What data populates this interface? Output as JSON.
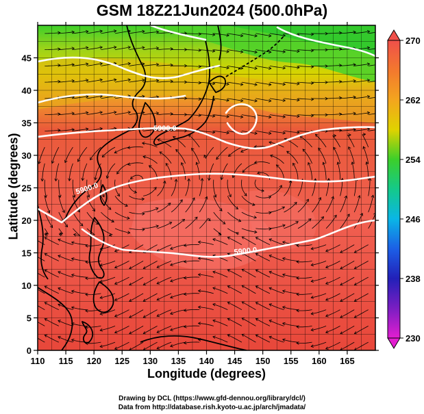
{
  "title": "GSM 18Z21Jun2024 (500.0hPa)",
  "map": {
    "xlabel": "Longitude (degrees)",
    "ylabel": "Latitude  (degrees)",
    "lon_range": [
      110,
      170
    ],
    "lat_range": [
      0,
      50
    ],
    "lon_ticks": [
      "110",
      "115",
      "120",
      "125",
      "130",
      "135",
      "140",
      "145",
      "150",
      "155",
      "160",
      "165"
    ],
    "lat_ticks": [
      "0",
      "5",
      "10",
      "15",
      "20",
      "25",
      "30",
      "35",
      "40",
      "45"
    ],
    "contour_label": "5900.0",
    "contour_value": 5900.0,
    "colorbar": {
      "min": 230,
      "max": 270,
      "labels": [
        "270",
        "262",
        "254",
        "246",
        "238",
        "230"
      ]
    },
    "colors": {
      "warm": "#e8473a",
      "hot": "#f56a5e",
      "orange": "#ef8f2c",
      "yellow": "#d9d400",
      "green": "#3dcf2a",
      "contour": "#ffffff",
      "streamline": "#000000"
    }
  },
  "credits": {
    "line1": "Drawing by DCL (https://www.gfd-dennou.org/library/dcl/)",
    "line2": "Data from http://database.rish.kyoto-u.ac.jp/arch/jmadata/"
  }
}
